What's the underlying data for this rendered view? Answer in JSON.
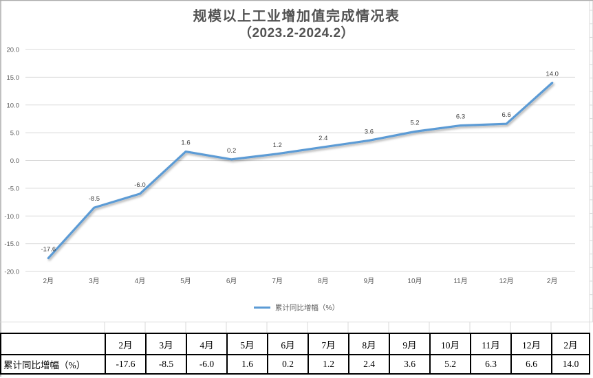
{
  "title": {
    "line1": "规模以上工业增加值完成情况表",
    "line2": "（2023.2-2024.2）"
  },
  "chart_data": {
    "type": "line",
    "title": "规模以上工业增加值完成情况表（2023.2-2024.2）",
    "categories": [
      "2月",
      "3月",
      "4月",
      "5月",
      "6月",
      "7月",
      "8月",
      "9月",
      "10月",
      "11月",
      "12月",
      "2月"
    ],
    "series": [
      {
        "name": "累计同比增幅（%）",
        "values": [
          -17.6,
          -8.5,
          -6.0,
          1.6,
          0.2,
          1.2,
          2.4,
          3.6,
          5.2,
          6.3,
          6.6,
          14.0
        ]
      }
    ],
    "data_labels": [
      "-17.6",
      "-8.5",
      "-6.0",
      "1.6",
      "0.2",
      "1.2",
      "2.4",
      "3.6",
      "5.2",
      "6.3",
      "6.6",
      "14.0"
    ],
    "ylim": [
      -20,
      20
    ],
    "ytick_step": 5,
    "ytick_labels": [
      "20.0",
      "15.0",
      "10.0",
      "5.0",
      "0.0",
      "-5.0",
      "-10.0",
      "-15.0",
      "-20.0"
    ],
    "grid": true,
    "legend_position": "bottom"
  },
  "legend": {
    "label": "累计同比增幅（%）"
  },
  "table": {
    "corner_header": "",
    "columns": [
      "2月",
      "3月",
      "4月",
      "5月",
      "6月",
      "7月",
      "8月",
      "9月",
      "10月",
      "11月",
      "12月",
      "2月"
    ],
    "row_label": "累计同比增幅（%）",
    "values": [
      "-17.6",
      "-8.5",
      "-6.0",
      "1.6",
      "0.2",
      "1.2",
      "2.4",
      "3.6",
      "5.2",
      "6.3",
      "6.6",
      "14.0"
    ]
  },
  "colors": {
    "line": "#5B9BD5",
    "grid": "#D9D9D9",
    "axis_text": "#595959",
    "data_label_text": "#404040",
    "title_text": "#525252",
    "table_border": "#000000",
    "sheet_grid": "#D9D9D9",
    "frame": "#ABABAB"
  }
}
